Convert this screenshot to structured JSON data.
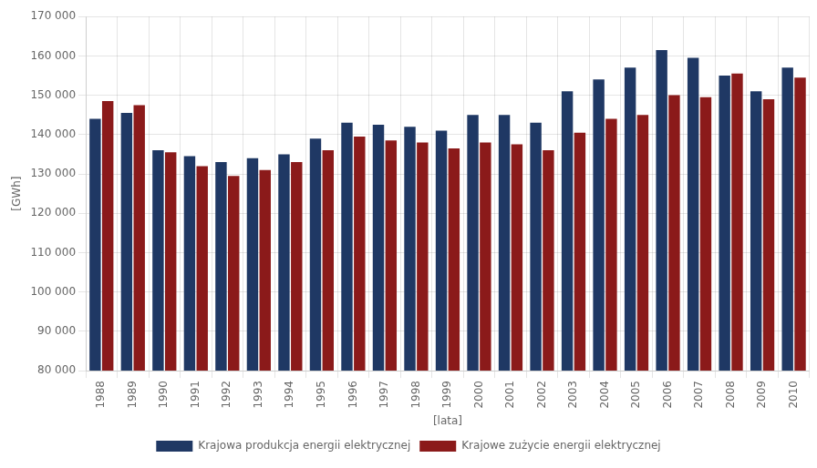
{
  "chart_data": {
    "type": "bar",
    "xlabel": "[lata]",
    "ylabel": "[GWh]",
    "categories": [
      "1988",
      "1989",
      "1990",
      "1991",
      "1992",
      "1993",
      "1994",
      "1995",
      "1996",
      "1997",
      "1998",
      "1999",
      "2000",
      "2001",
      "2002",
      "2003",
      "2004",
      "2005",
      "2006",
      "2007",
      "2008",
      "2009",
      "2010"
    ],
    "series": [
      {
        "name": "Krajowa produkcja energii elektrycznej",
        "color": "#1F3864",
        "values": [
          144000,
          145500,
          136000,
          134500,
          133000,
          134000,
          135000,
          139000,
          143000,
          142500,
          142000,
          141000,
          145000,
          145000,
          143000,
          151000,
          154000,
          157000,
          161500,
          159500,
          155000,
          151000,
          157000
        ]
      },
      {
        "name": "Krajowe zużycie energii elektrycznej",
        "color": "#8B1A1A",
        "values": [
          148500,
          147500,
          135500,
          132000,
          129500,
          131000,
          133000,
          136000,
          139500,
          138500,
          138000,
          136500,
          138000,
          137500,
          136000,
          140500,
          144000,
          145000,
          150000,
          149500,
          155500,
          149000,
          154500
        ]
      }
    ],
    "ylim": [
      80000,
      170000
    ],
    "yticks": [
      {
        "value": 80000,
        "label": "80 000"
      },
      {
        "value": 90000,
        "label": "90 000"
      },
      {
        "value": 100000,
        "label": "100 000"
      },
      {
        "value": 110000,
        "label": "110 000"
      },
      {
        "value": 120000,
        "label": "120 000"
      },
      {
        "value": 130000,
        "label": "130 000"
      },
      {
        "value": 140000,
        "label": "140 000"
      },
      {
        "value": 150000,
        "label": "150 000"
      },
      {
        "value": 160000,
        "label": "160 000"
      },
      {
        "value": 170000,
        "label": "170 000"
      }
    ],
    "grid": true,
    "legend": "bottom"
  }
}
